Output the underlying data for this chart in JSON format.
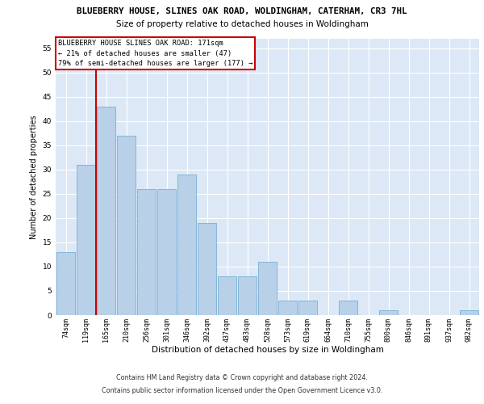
{
  "title_line1": "BLUEBERRY HOUSE, SLINES OAK ROAD, WOLDINGHAM, CATERHAM, CR3 7HL",
  "title_line2": "Size of property relative to detached houses in Woldingham",
  "xlabel": "Distribution of detached houses by size in Woldingham",
  "ylabel": "Number of detached properties",
  "categories": [
    "74sqm",
    "119sqm",
    "165sqm",
    "210sqm",
    "256sqm",
    "301sqm",
    "346sqm",
    "392sqm",
    "437sqm",
    "483sqm",
    "528sqm",
    "573sqm",
    "619sqm",
    "664sqm",
    "710sqm",
    "755sqm",
    "800sqm",
    "846sqm",
    "891sqm",
    "937sqm",
    "982sqm"
  ],
  "values": [
    13,
    31,
    43,
    37,
    26,
    26,
    29,
    19,
    8,
    8,
    11,
    3,
    3,
    0,
    3,
    0,
    1,
    0,
    0,
    0,
    1
  ],
  "bar_color": "#b8d0e8",
  "bar_edge_color": "#7aafd4",
  "vline_x": 1.5,
  "vline_color": "#cc0000",
  "ylim": [
    0,
    57
  ],
  "yticks": [
    0,
    5,
    10,
    15,
    20,
    25,
    30,
    35,
    40,
    45,
    50,
    55
  ],
  "annotation_box_text": "BLUEBERRY HOUSE SLINES OAK ROAD: 171sqm\n← 21% of detached houses are smaller (47)\n79% of semi-detached houses are larger (177) →",
  "annotation_box_color": "#ffffff",
  "annotation_box_edge_color": "#cc0000",
  "footer_line1": "Contains HM Land Registry data © Crown copyright and database right 2024.",
  "footer_line2": "Contains public sector information licensed under the Open Government Licence v3.0.",
  "background_color": "#dce8f5",
  "grid_color": "#ffffff",
  "fig_bg_color": "#ffffff"
}
